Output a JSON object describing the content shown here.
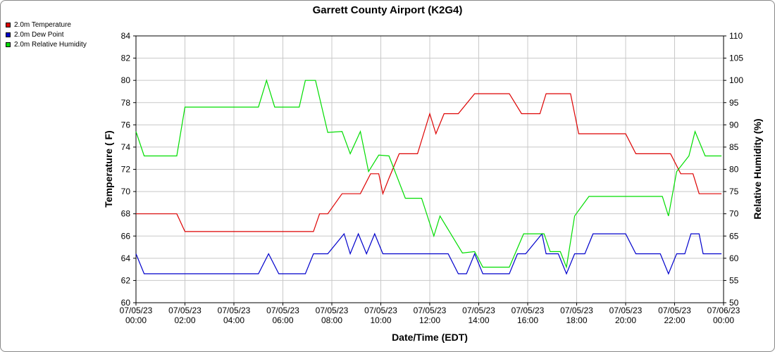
{
  "chart_data": {
    "type": "line",
    "title": "Garrett County Airport (K2G4)",
    "xlabel": "Date/Time (EDT)",
    "ylabel": "Temperature ( F)",
    "y2label": "Relative Humidity (%)",
    "ylim": [
      60,
      84
    ],
    "y2lim": [
      50,
      110
    ],
    "yticks": [
      "60",
      "62",
      "64",
      "66",
      "68",
      "70",
      "72",
      "74",
      "76",
      "78",
      "80",
      "82",
      "84"
    ],
    "y2ticks": [
      "50",
      "55",
      "60",
      "65",
      "70",
      "75",
      "80",
      "85",
      "90",
      "95",
      "100",
      "105",
      "110"
    ],
    "xticks": [
      [
        "07/05/23",
        "00:00"
      ],
      [
        "07/05/23",
        "02:00"
      ],
      [
        "07/05/23",
        "04:00"
      ],
      [
        "07/05/23",
        "06:00"
      ],
      [
        "07/05/23",
        "08:00"
      ],
      [
        "07/05/23",
        "10:00"
      ],
      [
        "07/05/23",
        "12:00"
      ],
      [
        "07/05/23",
        "14:00"
      ],
      [
        "07/05/23",
        "16:00"
      ],
      [
        "07/05/23",
        "18:00"
      ],
      [
        "07/05/23",
        "20:00"
      ],
      [
        "07/05/23",
        "22:00"
      ],
      [
        "07/06/23",
        "00:00"
      ]
    ],
    "grid": true,
    "legend_position": "top-left",
    "series": [
      {
        "name": "2.0m Temperature",
        "color": "#dd0000",
        "axis": "left",
        "points": [
          [
            "00:00",
            68
          ],
          [
            "01:40",
            68
          ],
          [
            "02:00",
            66.4
          ],
          [
            "07:15",
            66.4
          ],
          [
            "07:30",
            68
          ],
          [
            "07:50",
            68
          ],
          [
            "08:25",
            69.8
          ],
          [
            "09:10",
            69.8
          ],
          [
            "09:35",
            71.6
          ],
          [
            "09:55",
            71.6
          ],
          [
            "10:05",
            69.8
          ],
          [
            "10:20",
            71.2
          ],
          [
            "10:45",
            73.4
          ],
          [
            "11:30",
            73.4
          ],
          [
            "12:00",
            77
          ],
          [
            "12:15",
            75.2
          ],
          [
            "12:35",
            77
          ],
          [
            "13:10",
            77
          ],
          [
            "13:50",
            78.8
          ],
          [
            "14:25",
            78.8
          ],
          [
            "15:15",
            78.8
          ],
          [
            "15:45",
            77
          ],
          [
            "16:10",
            77
          ],
          [
            "16:30",
            77
          ],
          [
            "16:45",
            78.8
          ],
          [
            "17:45",
            78.8
          ],
          [
            "18:05",
            75.2
          ],
          [
            "20:00",
            75.2
          ],
          [
            "20:25",
            73.4
          ],
          [
            "21:50",
            73.4
          ],
          [
            "22:15",
            71.6
          ],
          [
            "22:45",
            71.6
          ],
          [
            "23:00",
            69.8
          ],
          [
            "23:55",
            69.8
          ]
        ]
      },
      {
        "name": "2.0m Dew Point",
        "color": "#0000cc",
        "axis": "left",
        "points": [
          [
            "00:00",
            64.4
          ],
          [
            "00:20",
            62.6
          ],
          [
            "05:00",
            62.6
          ],
          [
            "05:25",
            64.4
          ],
          [
            "05:50",
            62.6
          ],
          [
            "06:55",
            62.6
          ],
          [
            "07:15",
            64.4
          ],
          [
            "07:50",
            64.4
          ],
          [
            "08:30",
            66.2
          ],
          [
            "08:45",
            64.4
          ],
          [
            "09:05",
            66.2
          ],
          [
            "09:25",
            64.4
          ],
          [
            "09:45",
            66.2
          ],
          [
            "10:05",
            64.4
          ],
          [
            "12:15",
            64.4
          ],
          [
            "12:45",
            64.4
          ],
          [
            "13:10",
            62.6
          ],
          [
            "13:30",
            62.6
          ],
          [
            "13:50",
            64.4
          ],
          [
            "14:10",
            62.6
          ],
          [
            "15:15",
            62.6
          ],
          [
            "15:35",
            64.4
          ],
          [
            "15:55",
            64.4
          ],
          [
            "16:35",
            66.2
          ],
          [
            "16:45",
            64.4
          ],
          [
            "17:15",
            64.4
          ],
          [
            "17:35",
            62.6
          ],
          [
            "17:55",
            64.4
          ],
          [
            "18:20",
            64.4
          ],
          [
            "18:40",
            66.2
          ],
          [
            "20:00",
            66.2
          ],
          [
            "20:25",
            64.4
          ],
          [
            "21:25",
            64.4
          ],
          [
            "21:45",
            62.6
          ],
          [
            "22:05",
            64.4
          ],
          [
            "22:25",
            64.4
          ],
          [
            "22:40",
            66.2
          ],
          [
            "23:00",
            66.2
          ],
          [
            "23:10",
            64.4
          ],
          [
            "23:55",
            64.4
          ]
        ]
      },
      {
        "name": "2.0m Relative Humidity",
        "color": "#00dd00",
        "axis": "right",
        "points": [
          [
            "00:00",
            88.5
          ],
          [
            "00:20",
            83
          ],
          [
            "01:25",
            83
          ],
          [
            "01:40",
            83
          ],
          [
            "02:00",
            94
          ],
          [
            "05:00",
            94
          ],
          [
            "05:20",
            100
          ],
          [
            "05:40",
            94
          ],
          [
            "06:40",
            94
          ],
          [
            "06:55",
            100
          ],
          [
            "07:20",
            100
          ],
          [
            "07:50",
            88.3
          ],
          [
            "08:25",
            88.5
          ],
          [
            "08:45",
            83.5
          ],
          [
            "09:10",
            88.5
          ],
          [
            "09:30",
            79.5
          ],
          [
            "09:55",
            83.2
          ],
          [
            "10:20",
            83
          ],
          [
            "11:00",
            73.5
          ],
          [
            "11:40",
            73.5
          ],
          [
            "12:10",
            65
          ],
          [
            "12:25",
            69.5
          ],
          [
            "13:20",
            61.2
          ],
          [
            "13:50",
            61.5
          ],
          [
            "14:10",
            58
          ],
          [
            "15:15",
            58
          ],
          [
            "15:50",
            65.5
          ],
          [
            "16:20",
            65.5
          ],
          [
            "16:40",
            65.5
          ],
          [
            "16:55",
            61.5
          ],
          [
            "17:20",
            61.5
          ],
          [
            "17:35",
            58
          ],
          [
            "17:55",
            69.5
          ],
          [
            "18:30",
            73.9
          ],
          [
            "19:50",
            73.9
          ],
          [
            "20:30",
            73.9
          ],
          [
            "21:30",
            73.9
          ],
          [
            "21:45",
            69.5
          ],
          [
            "22:05",
            79.5
          ],
          [
            "22:35",
            83
          ],
          [
            "22:50",
            88.5
          ],
          [
            "23:15",
            83
          ],
          [
            "23:55",
            83
          ]
        ]
      }
    ]
  }
}
